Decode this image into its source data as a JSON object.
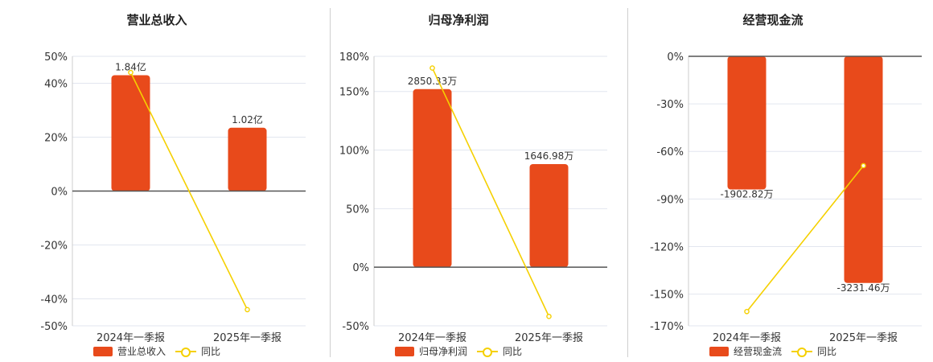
{
  "colors": {
    "bar": "#e84a1b",
    "line": "#f5d000",
    "axis": "#555555",
    "grid": "#e2e6ef"
  },
  "chart_data": [
    {
      "type": "bar",
      "title": "营业总收入",
      "categories": [
        "2024年一季报",
        "2025年一季报"
      ],
      "ylim": [
        -50,
        50
      ],
      "ticks": [
        50,
        40,
        20,
        0,
        -20,
        -40,
        -50
      ],
      "tick_labels": [
        "50%",
        "40%",
        "20%",
        "0%",
        "-20%",
        "-40%",
        "-50%"
      ],
      "series": [
        {
          "name": "营业总收入",
          "kind": "bar",
          "values": [
            43,
            23.5
          ],
          "labels": [
            "1.84亿",
            "1.02亿"
          ]
        },
        {
          "name": "同比",
          "kind": "line",
          "values": [
            44,
            -44
          ]
        }
      ],
      "legend": [
        "营业总收入",
        "同比"
      ],
      "legend_placement": "bottom"
    },
    {
      "type": "bar",
      "title": "归母净利润",
      "categories": [
        "2024年一季报",
        "2025年一季报"
      ],
      "ylim": [
        -50,
        180
      ],
      "ticks": [
        180,
        150,
        100,
        50,
        0,
        -50
      ],
      "tick_labels": [
        "180%",
        "150%",
        "100%",
        "50%",
        "0%",
        "-50%"
      ],
      "series": [
        {
          "name": "归母净利润",
          "kind": "bar",
          "values": [
            152,
            88
          ],
          "labels": [
            "2850.33万",
            "1646.98万"
          ]
        },
        {
          "name": "同比",
          "kind": "line",
          "values": [
            170,
            -42
          ]
        }
      ],
      "legend": [
        "归母净利润",
        "同比"
      ],
      "legend_placement": "bottom"
    },
    {
      "type": "bar",
      "title": "经营现金流",
      "categories": [
        "2024年一季报",
        "2025年一季报"
      ],
      "ylim": [
        -170,
        0
      ],
      "ticks": [
        0,
        -30,
        -60,
        -90,
        -120,
        -150,
        -170
      ],
      "tick_labels": [
        "0%",
        "-30%",
        "-60%",
        "-90%",
        "-120%",
        "-150%",
        "-170%"
      ],
      "series": [
        {
          "name": "经营现金流",
          "kind": "bar",
          "values": [
            -84,
            -143
          ],
          "labels": [
            "-1902.82万",
            "-3231.46万"
          ]
        },
        {
          "name": "同比",
          "kind": "line",
          "values": [
            -161,
            -69
          ]
        }
      ],
      "legend": [
        "经营现金流",
        "同比"
      ],
      "legend_placement": "bottom"
    }
  ]
}
